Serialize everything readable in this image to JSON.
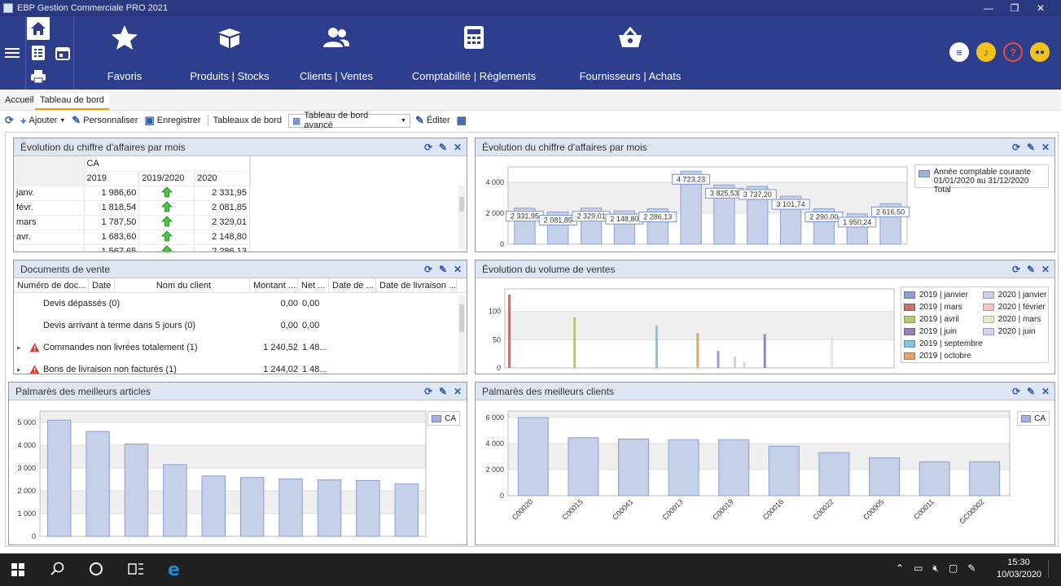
{
  "window": {
    "title": "EBP Gestion Commerciale PRO 2021",
    "min": "—",
    "restore": "❐",
    "close": "✕"
  },
  "nav": [
    {
      "label": "Favoris",
      "icon": "star-icon"
    },
    {
      "label": "Produits | Stocks",
      "icon": "box-icon"
    },
    {
      "label": "Clients | Ventes",
      "icon": "users-icon"
    },
    {
      "label": "Comptabilité | Règlements",
      "icon": "calculator-icon"
    },
    {
      "label": "Fournisseurs | Achats",
      "icon": "basket-icon"
    }
  ],
  "tabs": [
    "Accueil",
    "Tableau de bord"
  ],
  "toolbar": {
    "refresh": "⟳",
    "add": "Ajouter",
    "customize": "Personnaliser",
    "save": "Enregistrer",
    "dashboards": "Tableaux de bord",
    "selected_dashboard": "Tableau de bord avancé",
    "edit": "Éditer"
  },
  "p1": {
    "title": "Évolution du chiffre d'affaires par mois",
    "group": "CA",
    "cols": [
      "2019",
      "2019/2020",
      "2020"
    ],
    "rows": [
      [
        "janv.",
        "1 986,60",
        "2 331,95"
      ],
      [
        "févr.",
        "1 818,54",
        "2 081,85"
      ],
      [
        "mars",
        "1 787,50",
        "2 329,01"
      ],
      [
        "avr.",
        "1 683,60",
        "2 148,80"
      ],
      [
        "",
        "1 567,65",
        "2 286,13"
      ]
    ]
  },
  "p2": {
    "title": "Évolution du chiffre d'affaires par mois",
    "legend": [
      "Année comptable courante",
      "01/01/2020 au 31/12/2020 Total"
    ],
    "chart_data": {
      "type": "bar",
      "ylim": [
        0,
        5000
      ],
      "yticks": [
        "0",
        "2 000",
        "4 000"
      ],
      "values": [
        2331.95,
        2081.85,
        2329.01,
        2148.8,
        2286.13,
        4723.23,
        3825.53,
        3737.2,
        3101.74,
        2290.0,
        1950.24,
        2616.5
      ],
      "labels": [
        "2 331,95",
        "2 081,85",
        "2 329,01",
        "2 148,80",
        "2 286,13",
        "4 723,23",
        "3 825,53",
        "3 737,20",
        "3 101,74",
        "2 290,00",
        "1 950,24",
        "2 616,50"
      ]
    }
  },
  "p3": {
    "title": "Documents de vente",
    "cols": [
      "Numéro de doc...",
      "Date",
      "Nom du client",
      "Montant ...",
      "Net ...",
      "Date de ...",
      "Date de livraison ..."
    ],
    "rows": [
      {
        "name": "Devis dépassés (0)",
        "amount": "0,00",
        "net": "0,00",
        "warn": false
      },
      {
        "name": "Devis arrivant à terme dans 5 jours (0)",
        "amount": "0,00",
        "net": "0,00",
        "warn": false
      },
      {
        "name": "Commandes non livrées totalement (1)",
        "amount": "1 240,52",
        "net": "1 48...",
        "warn": true
      },
      {
        "name": "Bons de livraison non facturés (1)",
        "amount": "1 244,02",
        "net": "1 48...",
        "warn": true
      }
    ]
  },
  "p4": {
    "title": "Évolution du volume de ventes",
    "legend_left": [
      {
        "label": "2019 | janvier",
        "color": "#8ea0cc"
      },
      {
        "label": "2019 | mars",
        "color": "#c27474"
      },
      {
        "label": "2019 | avril",
        "color": "#b5c97a"
      },
      {
        "label": "2019 | juin",
        "color": "#9585b5"
      },
      {
        "label": "2019 | septembre",
        "color": "#8cc3d6"
      },
      {
        "label": "2019 | octobre",
        "color": "#e6a66a"
      }
    ],
    "legend_right": [
      {
        "label": "2020 | janvier",
        "color": "#c9d2ea"
      },
      {
        "label": "2020 | février",
        "color": "#efc7c5"
      },
      {
        "label": "2020 | mars",
        "color": "#e3eccb"
      },
      {
        "label": "2020 | juin",
        "color": "#d6d1e6"
      }
    ],
    "chart_data": {
      "type": "bar",
      "ylim": [
        0,
        140
      ],
      "yticks": [
        "0",
        "50",
        "100"
      ],
      "bars": [
        {
          "pos": 0.0,
          "value": 130,
          "color": "#c27474"
        },
        {
          "pos": 0.175,
          "value": 90,
          "color": "#b5c97a"
        },
        {
          "pos": 0.395,
          "value": 75,
          "color": "#8cc3d6"
        },
        {
          "pos": 0.505,
          "value": 62,
          "color": "#e6a66a"
        },
        {
          "pos": 0.56,
          "value": 30,
          "color": "#8ea0cc"
        },
        {
          "pos": 0.605,
          "value": 20,
          "color": "#c9d2ea"
        },
        {
          "pos": 0.63,
          "value": 10,
          "color": "#d6d1e6"
        },
        {
          "pos": 0.685,
          "value": 60,
          "color": "#9585b5"
        },
        {
          "pos": 0.865,
          "value": 60,
          "color": "#e3eccb"
        }
      ]
    }
  },
  "p5": {
    "title": "Palmarès des meilleurs articles",
    "legend": "CA",
    "chart_data": {
      "type": "bar",
      "ylim": [
        0,
        5500
      ],
      "yticks": [
        "0",
        "1 000",
        "2 000",
        "3 000",
        "4 000",
        "5 000"
      ],
      "values": [
        5100,
        4600,
        4050,
        3150,
        2650,
        2580,
        2520,
        2480,
        2450,
        2300
      ]
    }
  },
  "p6": {
    "title": "Palmarès des meilleurs clients",
    "legend": "CA",
    "chart_data": {
      "type": "bar",
      "ylim": [
        0,
        6500
      ],
      "yticks": [
        "0",
        "2 000",
        "4 000",
        "6 000"
      ],
      "categories": [
        "C00020",
        "C00015",
        "C00041",
        "C00013",
        "C00019",
        "C00016",
        "C00022",
        "C00005",
        "C00011",
        "GC00002"
      ],
      "values": [
        6000,
        4450,
        4350,
        4300,
        4300,
        3800,
        3300,
        2900,
        2600,
        2600
      ]
    }
  },
  "taskbar": {
    "time": "15:30",
    "date": "10/03/2020"
  }
}
